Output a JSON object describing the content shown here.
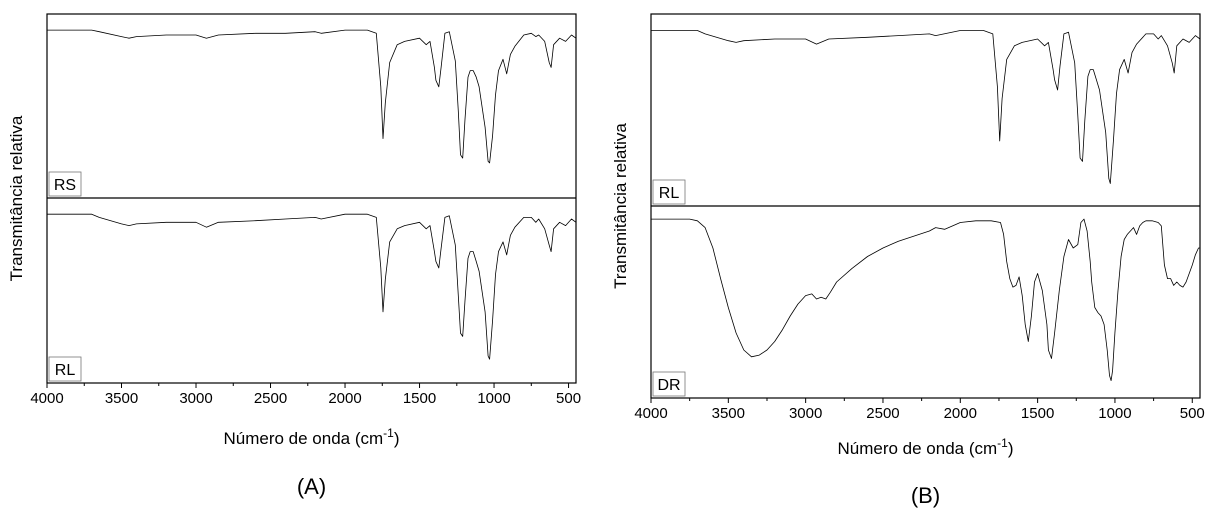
{
  "chart_data": [
    {
      "type": "line",
      "panel_label": "(A)",
      "xlabel": "Número de onda (cm",
      "xlabel_sup": "-1",
      "xlabel_close": ")",
      "ylabel": "Transmitância relativa",
      "xlim": [
        4000,
        450
      ],
      "x_reversed": true,
      "xticks": [
        4000,
        3500,
        3000,
        2500,
        2000,
        1500,
        1000,
        500
      ],
      "y_values_shown": false,
      "stacked": true,
      "grid": false,
      "series": [
        {
          "name": "RS",
          "x": [
            4000,
            3700,
            3650,
            3500,
            3450,
            3400,
            3200,
            3000,
            2930,
            2850,
            2600,
            2400,
            2200,
            2160,
            2000,
            1850,
            1790,
            1760,
            1745,
            1730,
            1700,
            1650,
            1600,
            1500,
            1455,
            1430,
            1400,
            1390,
            1371,
            1355,
            1330,
            1300,
            1260,
            1240,
            1225,
            1210,
            1195,
            1175,
            1160,
            1140,
            1120,
            1100,
            1060,
            1040,
            1030,
            1010,
            990,
            970,
            940,
            915,
            890,
            860,
            800,
            750,
            720,
            700,
            660,
            630,
            617,
            600,
            560,
            520,
            480,
            450
          ],
          "y": [
            0.95,
            0.95,
            0.94,
            0.91,
            0.9,
            0.91,
            0.92,
            0.92,
            0.9,
            0.92,
            0.93,
            0.93,
            0.94,
            0.93,
            0.95,
            0.95,
            0.93,
            0.6,
            0.28,
            0.5,
            0.75,
            0.86,
            0.88,
            0.9,
            0.86,
            0.88,
            0.72,
            0.64,
            0.6,
            0.72,
            0.93,
            0.94,
            0.76,
            0.45,
            0.18,
            0.16,
            0.4,
            0.66,
            0.7,
            0.7,
            0.66,
            0.6,
            0.35,
            0.14,
            0.13,
            0.3,
            0.55,
            0.7,
            0.77,
            0.68,
            0.8,
            0.85,
            0.92,
            0.93,
            0.91,
            0.92,
            0.88,
            0.75,
            0.72,
            0.86,
            0.9,
            0.88,
            0.92,
            0.9
          ]
        },
        {
          "name": "RL",
          "x": [
            4000,
            3700,
            3650,
            3500,
            3450,
            3400,
            3200,
            3000,
            2930,
            2850,
            2600,
            2400,
            2200,
            2160,
            2000,
            1850,
            1790,
            1760,
            1745,
            1730,
            1700,
            1650,
            1600,
            1500,
            1455,
            1430,
            1400,
            1390,
            1371,
            1355,
            1330,
            1300,
            1260,
            1240,
            1225,
            1210,
            1195,
            1175,
            1160,
            1140,
            1120,
            1100,
            1060,
            1040,
            1030,
            1010,
            990,
            970,
            940,
            915,
            890,
            860,
            800,
            750,
            720,
            700,
            660,
            630,
            617,
            600,
            560,
            520,
            480,
            450
          ],
          "y": [
            0.95,
            0.95,
            0.93,
            0.89,
            0.88,
            0.89,
            0.9,
            0.9,
            0.87,
            0.9,
            0.91,
            0.92,
            0.93,
            0.92,
            0.95,
            0.95,
            0.93,
            0.62,
            0.35,
            0.55,
            0.78,
            0.86,
            0.88,
            0.9,
            0.86,
            0.88,
            0.72,
            0.66,
            0.62,
            0.74,
            0.93,
            0.94,
            0.76,
            0.45,
            0.22,
            0.2,
            0.42,
            0.68,
            0.72,
            0.72,
            0.66,
            0.6,
            0.35,
            0.08,
            0.06,
            0.3,
            0.58,
            0.72,
            0.78,
            0.7,
            0.82,
            0.87,
            0.93,
            0.93,
            0.9,
            0.92,
            0.86,
            0.76,
            0.72,
            0.86,
            0.9,
            0.88,
            0.92,
            0.9
          ]
        }
      ]
    },
    {
      "type": "line",
      "panel_label": "(B)",
      "xlabel": "Número de onda (cm",
      "xlabel_sup": "-1",
      "xlabel_close": ")",
      "ylabel": "Transmitância relativa",
      "xlim": [
        4000,
        450
      ],
      "x_reversed": true,
      "xticks": [
        4000,
        3500,
        3000,
        2500,
        2000,
        1500,
        1000,
        500
      ],
      "y_values_shown": false,
      "stacked": true,
      "grid": false,
      "series": [
        {
          "name": "RL",
          "x": [
            4000,
            3700,
            3650,
            3500,
            3450,
            3400,
            3200,
            3000,
            2930,
            2850,
            2600,
            2400,
            2200,
            2160,
            2000,
            1850,
            1790,
            1760,
            1745,
            1730,
            1700,
            1650,
            1600,
            1500,
            1455,
            1430,
            1400,
            1390,
            1371,
            1355,
            1330,
            1300,
            1260,
            1240,
            1225,
            1210,
            1195,
            1175,
            1160,
            1140,
            1120,
            1100,
            1060,
            1040,
            1030,
            1010,
            990,
            970,
            940,
            915,
            890,
            860,
            800,
            750,
            720,
            700,
            660,
            630,
            617,
            600,
            560,
            520,
            480,
            450
          ],
          "y": [
            0.95,
            0.95,
            0.93,
            0.89,
            0.88,
            0.89,
            0.9,
            0.9,
            0.87,
            0.9,
            0.91,
            0.92,
            0.93,
            0.92,
            0.95,
            0.95,
            0.93,
            0.62,
            0.3,
            0.55,
            0.78,
            0.86,
            0.88,
            0.9,
            0.86,
            0.88,
            0.72,
            0.66,
            0.6,
            0.74,
            0.93,
            0.94,
            0.76,
            0.45,
            0.2,
            0.18,
            0.42,
            0.68,
            0.72,
            0.72,
            0.66,
            0.6,
            0.35,
            0.08,
            0.05,
            0.3,
            0.58,
            0.72,
            0.78,
            0.7,
            0.82,
            0.87,
            0.93,
            0.93,
            0.9,
            0.92,
            0.86,
            0.76,
            0.7,
            0.86,
            0.9,
            0.88,
            0.92,
            0.9
          ]
        },
        {
          "name": "DR",
          "x": [
            4000,
            3750,
            3700,
            3650,
            3600,
            3550,
            3500,
            3450,
            3400,
            3350,
            3300,
            3250,
            3200,
            3150,
            3100,
            3050,
            3000,
            2960,
            2930,
            2900,
            2870,
            2840,
            2800,
            2700,
            2600,
            2500,
            2400,
            2300,
            2200,
            2160,
            2100,
            2050,
            2000,
            1900,
            1800,
            1740,
            1720,
            1700,
            1680,
            1660,
            1640,
            1620,
            1600,
            1580,
            1560,
            1540,
            1520,
            1500,
            1470,
            1440,
            1430,
            1410,
            1390,
            1360,
            1330,
            1300,
            1270,
            1240,
            1220,
            1200,
            1180,
            1160,
            1150,
            1130,
            1110,
            1090,
            1070,
            1050,
            1035,
            1025,
            1015,
            1000,
            980,
            960,
            940,
            920,
            900,
            880,
            860,
            840,
            820,
            800,
            780,
            760,
            720,
            700,
            680,
            660,
            640,
            620,
            600,
            580,
            560,
            540,
            520,
            500,
            480,
            460,
            450
          ],
          "y": [
            0.97,
            0.97,
            0.96,
            0.92,
            0.8,
            0.62,
            0.45,
            0.3,
            0.2,
            0.16,
            0.17,
            0.2,
            0.25,
            0.32,
            0.4,
            0.47,
            0.52,
            0.53,
            0.5,
            0.51,
            0.5,
            0.54,
            0.6,
            0.68,
            0.75,
            0.8,
            0.84,
            0.87,
            0.9,
            0.92,
            0.91,
            0.93,
            0.95,
            0.96,
            0.96,
            0.95,
            0.88,
            0.72,
            0.62,
            0.57,
            0.58,
            0.63,
            0.52,
            0.35,
            0.25,
            0.4,
            0.6,
            0.65,
            0.55,
            0.35,
            0.2,
            0.15,
            0.3,
            0.55,
            0.75,
            0.85,
            0.8,
            0.82,
            0.95,
            0.97,
            0.9,
            0.72,
            0.6,
            0.45,
            0.42,
            0.4,
            0.35,
            0.2,
            0.05,
            0.02,
            0.08,
            0.3,
            0.55,
            0.75,
            0.85,
            0.88,
            0.9,
            0.92,
            0.88,
            0.93,
            0.95,
            0.96,
            0.96,
            0.96,
            0.95,
            0.93,
            0.7,
            0.62,
            0.62,
            0.58,
            0.6,
            0.58,
            0.57,
            0.6,
            0.65,
            0.7,
            0.76,
            0.8,
            0.8
          ]
        }
      ]
    }
  ]
}
